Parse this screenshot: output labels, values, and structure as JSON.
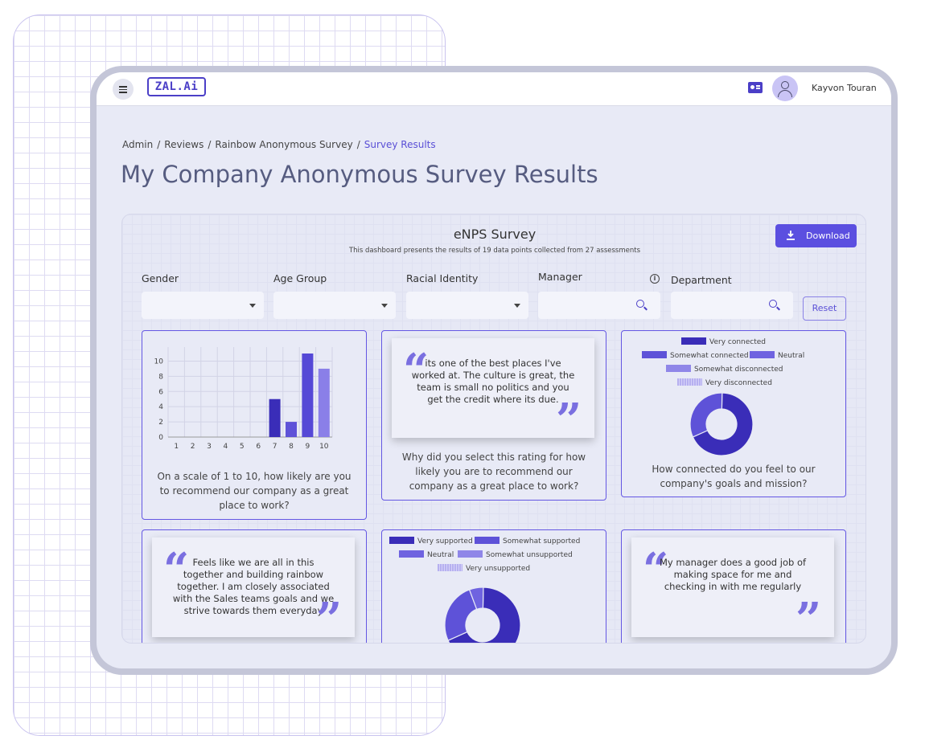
{
  "header": {
    "logo_text": "ZAL.Ai",
    "user_name": "Kayvon Touran"
  },
  "breadcrumb": [
    {
      "label": "Admin"
    },
    {
      "label": "Reviews"
    },
    {
      "label": "Rainbow Anonymous Survey"
    },
    {
      "label": "Survey Results"
    }
  ],
  "page_title": "My Company Anonymous Survey Results",
  "survey": {
    "title": "eNPS Survey",
    "subtitle": "This dashboard presents the results of 19 data points collected from 27 assessments",
    "download_label": "Download"
  },
  "filters": {
    "gender_label": "Gender",
    "age_label": "Age Group",
    "racial_label": "Racial Identity",
    "manager_label": "Manager",
    "department_label": "Department",
    "reset_label": "Reset"
  },
  "cards": {
    "q1": "On a scale of 1 to 10, how likely are you to recommend our company as a great place to work?",
    "q2_quote": "its one of the best places I've worked at. The culture is great, the team is small no politics and you get the credit where its due.",
    "q2": "Why did you select this rating for how likely you are to recommend our company as a great place to work?",
    "q3": "How connected do you feel to our company's goals and mission?",
    "q4_quote": "Feels like we are all in this together and building rainbow together. I am closely associated with the Sales teams goals and we strive towards them everyday",
    "q6_quote": "My manager does a good job of making space for me and checking in with me regularly"
  },
  "colors": {
    "accent": "#5b4fe0",
    "very": "#3a2db8",
    "somewhat": "#5e52d8",
    "neutral": "#6f63e0",
    "somewhat_dis": "#8f86e8",
    "very_dis": "#b6b0f0"
  },
  "chart_data": [
    {
      "type": "bar",
      "categories": [
        "1",
        "2",
        "3",
        "4",
        "5",
        "6",
        "7",
        "8",
        "9",
        "10"
      ],
      "values": [
        0,
        0,
        0,
        0,
        0,
        0,
        5,
        2,
        11,
        9
      ],
      "ylim": [
        0,
        11
      ],
      "yticks": [
        0,
        2,
        4,
        6,
        8,
        10
      ],
      "grid": true
    },
    {
      "type": "pie",
      "donut": true,
      "labels": [
        "Very connected",
        "Somewhat connected",
        "Neutral",
        "Somewhat disconnected",
        "Very disconnected"
      ],
      "values": [
        68,
        32,
        0,
        0,
        0
      ],
      "legend": "top"
    },
    {
      "type": "pie",
      "donut": true,
      "labels": [
        "Very supported",
        "Somewhat supported",
        "Neutral",
        "Somewhat unsupported",
        "Very unsupported"
      ],
      "values": [
        68,
        26,
        6,
        0,
        0
      ],
      "legend": "top"
    }
  ]
}
